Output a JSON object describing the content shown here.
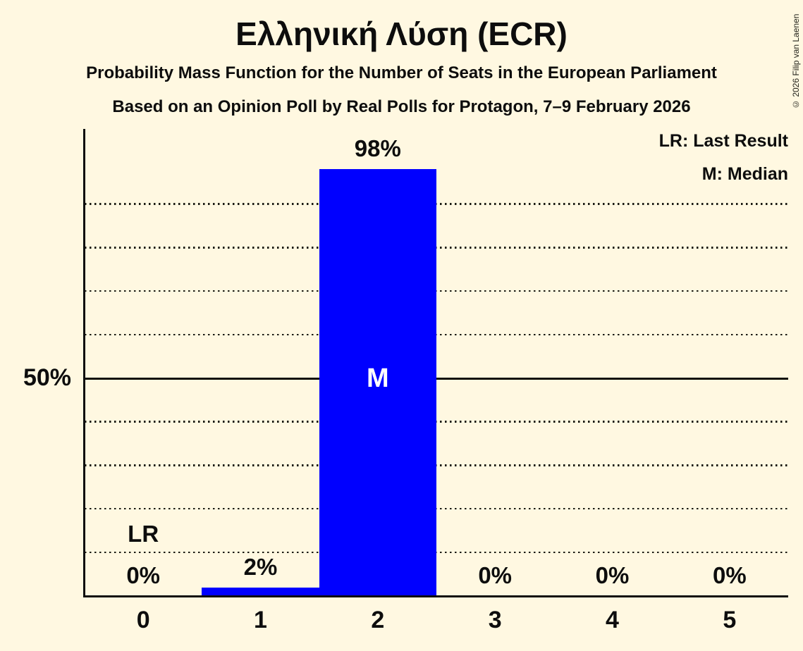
{
  "page": {
    "copyright": "© 2026 Filip van Laenen"
  },
  "chart_data": {
    "type": "bar",
    "title": "Ελληνική Λύση (ECR)",
    "subtitle": "Probability Mass Function for the Number of Seats in the European Parliament",
    "subsubtitle": "Based on an Opinion Poll by Real Polls for Protagon, 7–9 February 2026",
    "categories": [
      "0",
      "1",
      "2",
      "3",
      "4",
      "5"
    ],
    "values": [
      0,
      2,
      98,
      0,
      0,
      0
    ],
    "value_labels": [
      "0%",
      "2%",
      "98%",
      "0%",
      "0%",
      "0%"
    ],
    "median_index": 2,
    "median_marker": "M",
    "last_result_index": 0,
    "last_result_marker": "LR",
    "legend": [
      "LR: Last Result",
      "M: Median"
    ],
    "legend_position": "top-right",
    "y_axis_label": "50%",
    "ylim": [
      0,
      107
    ],
    "y_dotted_gridlines_pct": [
      10,
      20,
      30,
      40,
      60,
      70,
      80,
      90
    ],
    "y_solid_line_pct": 50,
    "grid": true,
    "bar_color": "#0000FF",
    "background_color": "#FFF8E1",
    "text_color": "#0D0D0D",
    "median_label_color": "#FFFFFF"
  }
}
